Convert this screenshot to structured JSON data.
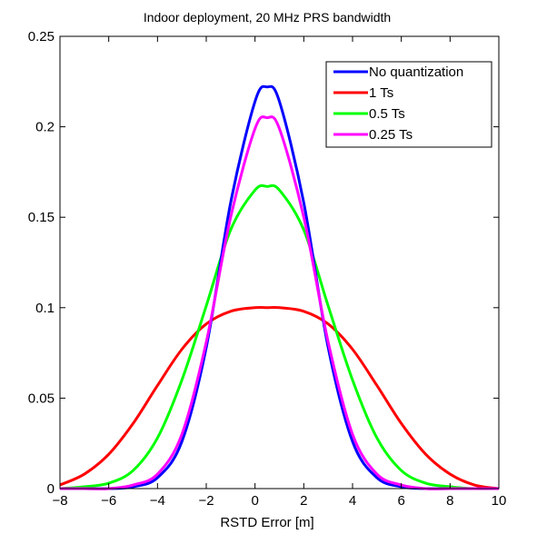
{
  "chart_data": {
    "type": "line",
    "title": "Indoor deployment, 20 MHz PRS bandwidth",
    "xlabel": "RSTD Error [m]",
    "ylabel": "",
    "xlim": [
      -8,
      10
    ],
    "ylim": [
      0,
      0.25
    ],
    "xticks": [
      -8,
      -6,
      -4,
      -2,
      0,
      2,
      4,
      6,
      8,
      10
    ],
    "yticks": [
      0,
      0.05,
      0.1,
      0.15,
      0.2,
      0.25
    ],
    "xtick_labels": [
      "−8",
      "−6",
      "−4",
      "−2",
      "0",
      "2",
      "4",
      "6",
      "8",
      "10"
    ],
    "ytick_labels": [
      "0",
      "0.05",
      "0.1",
      "0.15",
      "0.2",
      "0.25"
    ],
    "grid": false,
    "legend_position": "top-right",
    "x": [
      -8,
      -7,
      -6,
      -5,
      -4,
      -3,
      -2,
      -1,
      0,
      0.5,
      1,
      2,
      3,
      4,
      5,
      6,
      7,
      8,
      9,
      10
    ],
    "series": [
      {
        "name": "No quantization",
        "color": "#0000ff",
        "values": [
          0.0,
          0.0,
          0.0,
          0.001,
          0.006,
          0.026,
          0.078,
          0.158,
          0.214,
          0.222,
          0.214,
          0.158,
          0.078,
          0.026,
          0.006,
          0.001,
          0.0,
          0.0,
          0.0,
          0.0
        ]
      },
      {
        "name": "1 Ts",
        "color": "#ff0000",
        "values": [
          0.002,
          0.008,
          0.019,
          0.036,
          0.057,
          0.077,
          0.091,
          0.098,
          0.1,
          0.1,
          0.1,
          0.098,
          0.091,
          0.077,
          0.057,
          0.036,
          0.019,
          0.008,
          0.002,
          0.0
        ]
      },
      {
        "name": "0.5 Ts",
        "color": "#00ff00",
        "values": [
          0.0,
          0.001,
          0.003,
          0.01,
          0.028,
          0.06,
          0.101,
          0.143,
          0.165,
          0.167,
          0.165,
          0.143,
          0.101,
          0.06,
          0.028,
          0.01,
          0.003,
          0.001,
          0.0,
          0.0
        ]
      },
      {
        "name": "0.25 Ts",
        "color": "#ff00ff",
        "values": [
          0.0,
          0.0,
          0.0,
          0.002,
          0.008,
          0.03,
          0.081,
          0.15,
          0.199,
          0.205,
          0.199,
          0.15,
          0.081,
          0.03,
          0.008,
          0.002,
          0.0,
          0.0,
          0.0,
          0.0
        ]
      }
    ]
  }
}
